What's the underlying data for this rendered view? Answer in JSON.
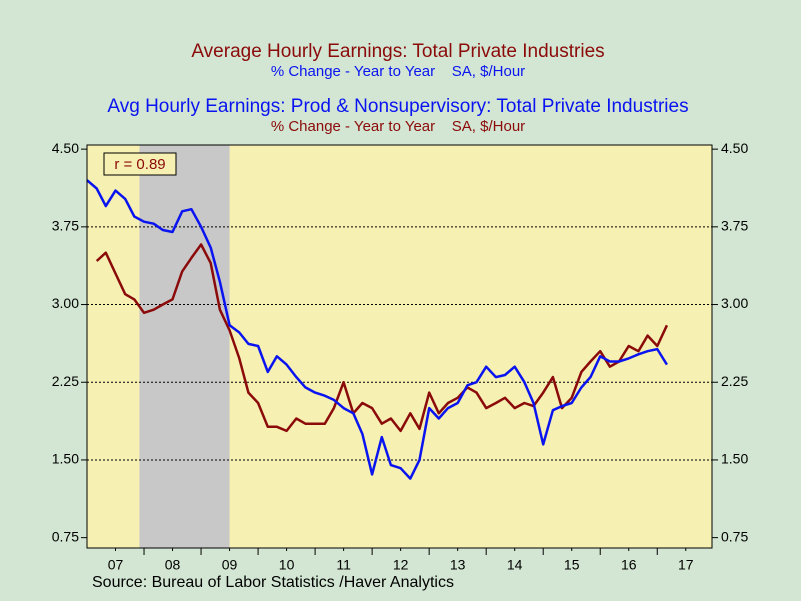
{
  "chart_data": {
    "type": "line",
    "series": [
      {
        "name": "Average Hourly Earnings: Total Private Industries",
        "subtitle": "% Change - Year to Year    SA, $/Hour",
        "color": "#8b0a0a",
        "values": [
          null,
          3.42,
          3.5,
          3.3,
          3.1,
          3.05,
          2.92,
          2.95,
          3.0,
          3.05,
          3.32,
          3.45,
          3.58,
          3.4,
          2.95,
          2.75,
          2.48,
          2.15,
          2.05,
          1.82,
          1.82,
          1.78,
          1.9,
          1.85,
          1.85,
          1.85,
          2.0,
          2.25,
          1.95,
          2.05,
          2.0,
          1.85,
          1.9,
          1.78,
          1.95,
          1.8,
          2.15,
          1.95,
          2.05,
          2.1,
          2.2,
          2.15,
          2.0,
          2.05,
          2.1,
          2.0,
          2.05,
          2.02,
          2.15,
          2.3,
          2.0,
          2.1,
          2.35,
          2.45,
          2.55,
          2.4,
          2.45,
          2.6,
          2.55,
          2.7,
          2.6,
          2.8
        ]
      },
      {
        "name": "Avg Hourly Earnings: Prod & Nonsupervisory: Total Private Industries",
        "subtitle": "% Change - Year to Year    SA, $/Hour",
        "color": "#0a14f0",
        "values": [
          4.2,
          4.12,
          3.95,
          4.1,
          4.02,
          3.85,
          3.8,
          3.78,
          3.72,
          3.7,
          3.9,
          3.92,
          3.75,
          3.55,
          3.22,
          2.8,
          2.73,
          2.62,
          2.6,
          2.35,
          2.5,
          2.42,
          2.3,
          2.2,
          2.15,
          2.12,
          2.08,
          2.0,
          1.95,
          1.75,
          1.36,
          1.72,
          1.45,
          1.42,
          1.32,
          1.5,
          2.0,
          1.9,
          2.0,
          2.05,
          2.22,
          2.25,
          2.4,
          2.3,
          2.32,
          2.4,
          2.25,
          2.05,
          1.65,
          1.98,
          2.02,
          2.05,
          2.2,
          2.3,
          2.5,
          2.45,
          2.45,
          2.48,
          2.52,
          2.55,
          2.57,
          2.42
        ]
      }
    ],
    "x": [
      2007.0,
      2007.17,
      2007.33,
      2007.5,
      2007.67,
      2007.83,
      2008.0,
      2008.17,
      2008.33,
      2008.5,
      2008.67,
      2008.83,
      2009.0,
      2009.17,
      2009.33,
      2009.5,
      2009.67,
      2009.83,
      2010.0,
      2010.17,
      2010.33,
      2010.5,
      2010.67,
      2010.83,
      2011.0,
      2011.17,
      2011.33,
      2011.5,
      2011.67,
      2011.83,
      2012.0,
      2012.17,
      2012.33,
      2012.5,
      2012.67,
      2012.83,
      2013.0,
      2013.17,
      2013.33,
      2013.5,
      2013.67,
      2013.83,
      2014.0,
      2014.17,
      2014.33,
      2014.5,
      2014.67,
      2014.83,
      2015.0,
      2015.17,
      2015.33,
      2015.5,
      2015.67,
      2015.83,
      2016.0,
      2016.17,
      2016.33,
      2016.5,
      2016.67,
      2016.83,
      2017.0,
      2017.17
    ],
    "xlim": [
      2007,
      2017.96
    ],
    "xticks": [
      {
        "value": 2007.5,
        "label": "07"
      },
      {
        "value": 2008.5,
        "label": "08"
      },
      {
        "value": 2009.5,
        "label": "09"
      },
      {
        "value": 2010.5,
        "label": "10"
      },
      {
        "value": 2011.5,
        "label": "11"
      },
      {
        "value": 2012.5,
        "label": "12"
      },
      {
        "value": 2013.5,
        "label": "13"
      },
      {
        "value": 2014.5,
        "label": "14"
      },
      {
        "value": 2015.5,
        "label": "15"
      },
      {
        "value": 2016.5,
        "label": "16"
      },
      {
        "value": 2017.5,
        "label": "17"
      }
    ],
    "ylim": [
      0.65,
      4.54
    ],
    "yticks": [
      {
        "value": 4.5,
        "label": "4.50"
      },
      {
        "value": 3.75,
        "label": "3.75"
      },
      {
        "value": 3.0,
        "label": "3.00"
      },
      {
        "value": 2.25,
        "label": "2.25"
      },
      {
        "value": 1.5,
        "label": "1.50"
      },
      {
        "value": 0.75,
        "label": "0.75"
      }
    ],
    "grid": true,
    "shaded_range": [
      2007.92,
      2009.5
    ],
    "annotation": "r = 0.89",
    "source": "Source:  Bureau of Labor Statistics /Haver Analytics"
  }
}
